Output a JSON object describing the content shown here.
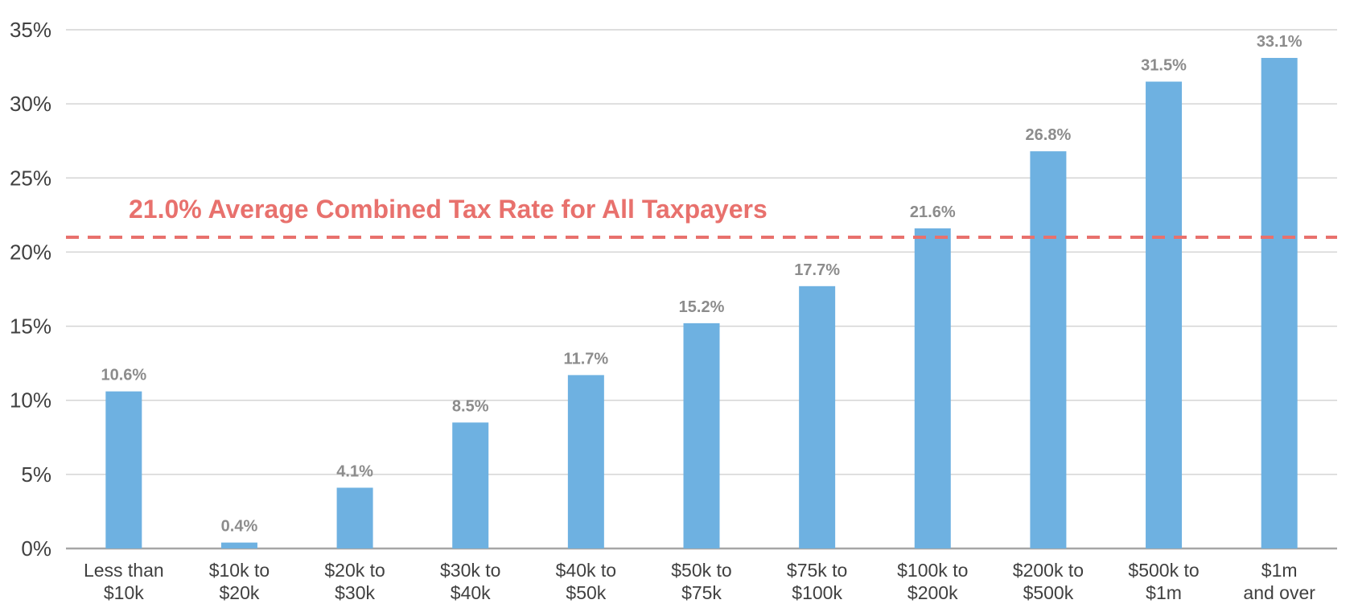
{
  "chart_data": {
    "type": "bar",
    "categories": [
      [
        "Less than",
        "$10k"
      ],
      [
        "$10k to",
        "$20k"
      ],
      [
        "$20k to",
        "$30k"
      ],
      [
        "$30k to",
        "$40k"
      ],
      [
        "$40k to",
        "$50k"
      ],
      [
        "$50k to",
        "$75k"
      ],
      [
        "$75k to",
        "$100k"
      ],
      [
        "$100k to",
        "$200k"
      ],
      [
        "$200k to",
        "$500k"
      ],
      [
        "$500k to",
        "$1m"
      ],
      [
        "$1m",
        "and over"
      ]
    ],
    "values": [
      10.6,
      0.4,
      4.1,
      8.5,
      11.7,
      15.2,
      17.7,
      21.6,
      26.8,
      31.5,
      33.1
    ],
    "data_labels": [
      "10.6%",
      "0.4%",
      "4.1%",
      "8.5%",
      "11.7%",
      "15.2%",
      "17.7%",
      "21.6%",
      "26.8%",
      "31.5%",
      "33.1%"
    ],
    "ylim": [
      0,
      35
    ],
    "yticks": [
      0,
      5,
      10,
      15,
      20,
      25,
      30,
      35
    ],
    "ytick_labels": [
      "0%",
      "5%",
      "10%",
      "15%",
      "20%",
      "25%",
      "30%",
      "35%"
    ],
    "grid": true,
    "reference_line": {
      "value": 21.0,
      "label": "21.0% Average Combined Tax Rate for All Taxpayers",
      "style": "dashed",
      "color": "#e8716d"
    },
    "bar_color": "#6eb1e1",
    "title": "",
    "xlabel": "",
    "ylabel": ""
  }
}
